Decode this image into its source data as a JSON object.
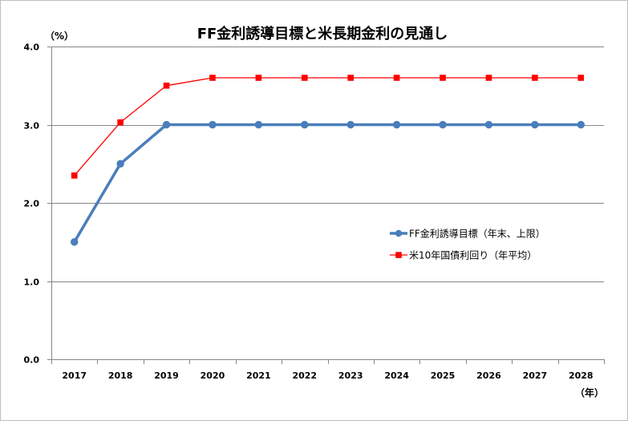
{
  "chart_data": {
    "type": "line",
    "title": "FF金利誘導目標と米長期金利の見通し",
    "xlabel": "（年）",
    "ylabel": "（%）",
    "categories": [
      "2017",
      "2018",
      "2019",
      "2020",
      "2021",
      "2022",
      "2023",
      "2024",
      "2025",
      "2026",
      "2027",
      "2028"
    ],
    "ylim": [
      0,
      4
    ],
    "yticks": [
      0,
      1,
      2,
      3,
      4
    ],
    "ytick_labels": [
      "0.0",
      "1.0",
      "2.0",
      "3.0",
      "4.0"
    ],
    "grid": true,
    "legend": "inside-right",
    "series": [
      {
        "name": "FF金利誘導目標（年末、上限）",
        "values": [
          1.5,
          2.5,
          3.0,
          3.0,
          3.0,
          3.0,
          3.0,
          3.0,
          3.0,
          3.0,
          3.0,
          3.0
        ],
        "color": "#4A7EBB",
        "marker": "circle"
      },
      {
        "name": "米10年国債利回り（年平均）",
        "values": [
          2.35,
          3.03,
          3.5,
          3.6,
          3.6,
          3.6,
          3.6,
          3.6,
          3.6,
          3.6,
          3.6,
          3.6
        ],
        "color": "#FF0000",
        "marker": "square"
      }
    ]
  }
}
